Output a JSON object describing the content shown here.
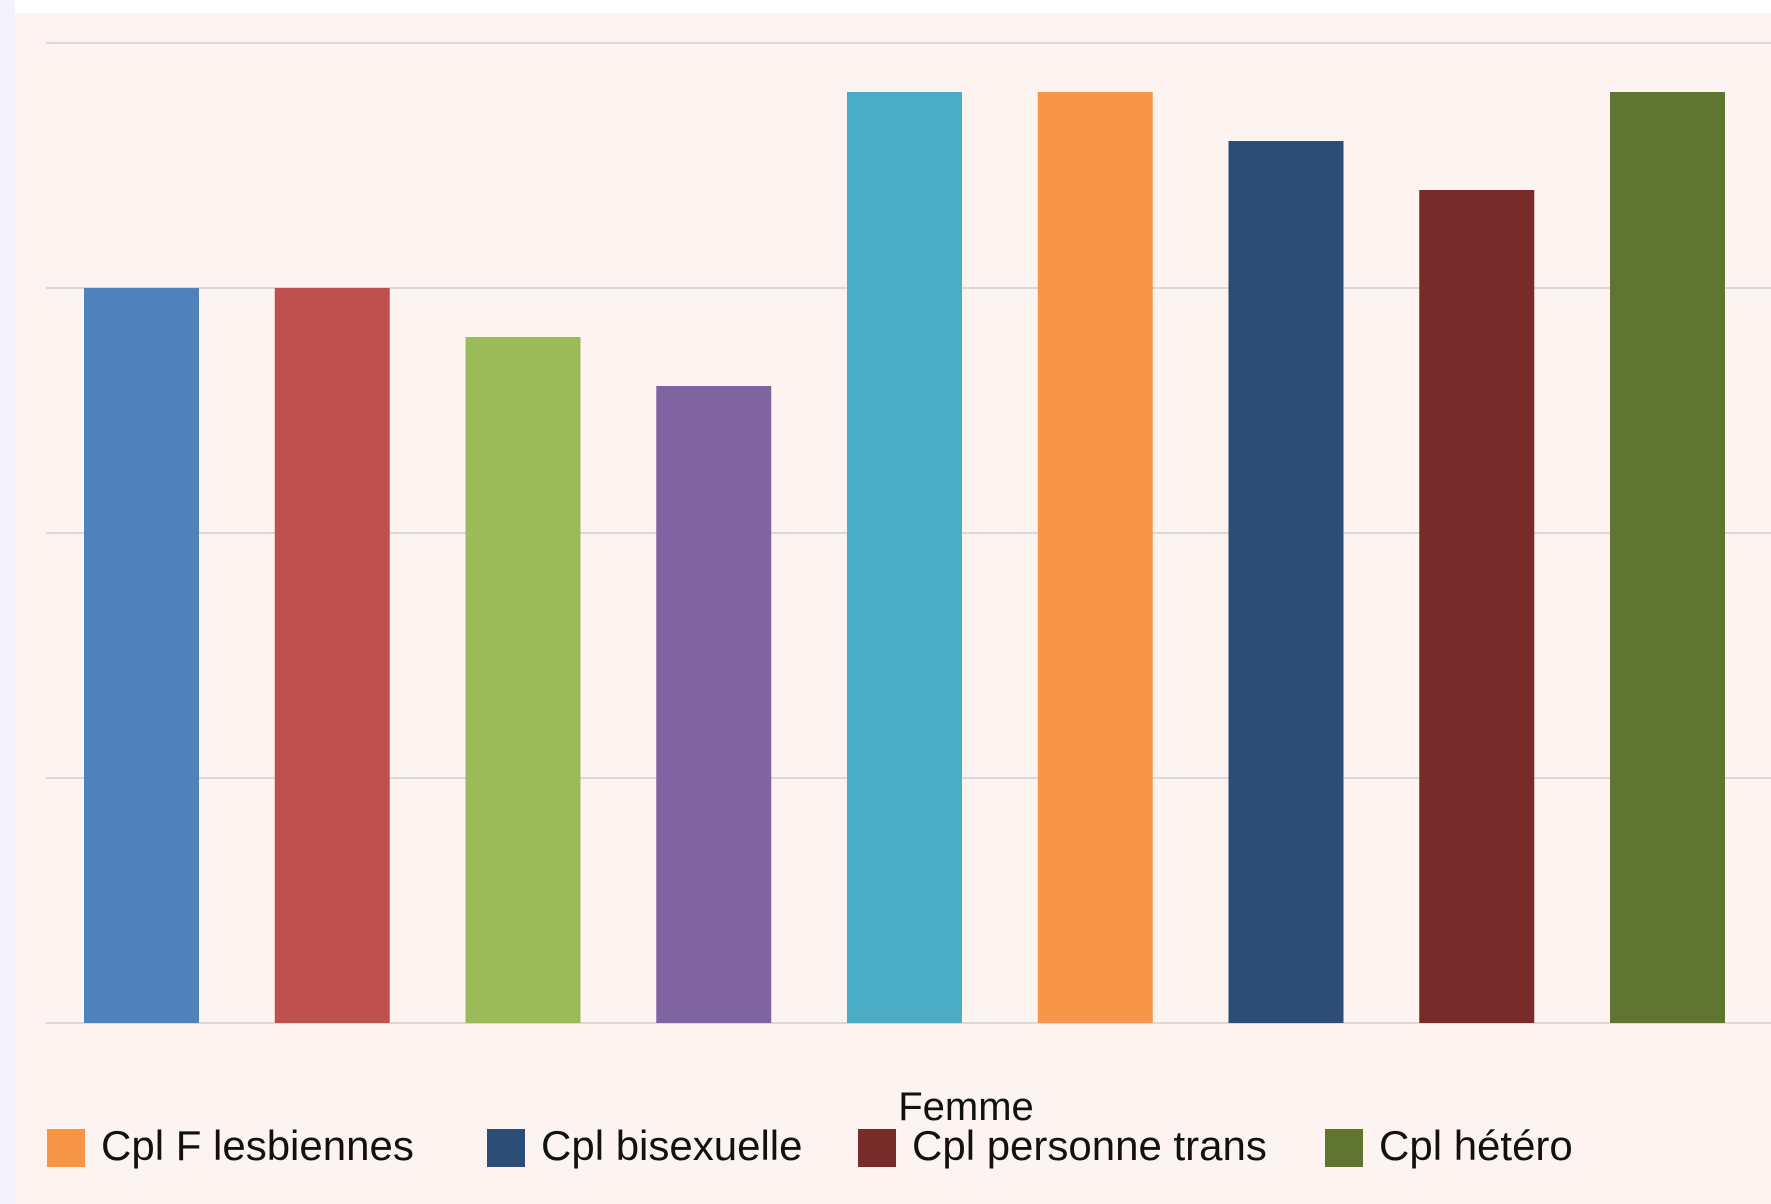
{
  "chart_data": {
    "type": "bar",
    "categories": [
      "Femme"
    ],
    "xlabel": "Femme",
    "ylabel": "",
    "ylim": [
      0,
      20
    ],
    "grid": true,
    "legend_position": "bottom",
    "series": [
      {
        "values": [
          15
        ],
        "color": "#4f81bd"
      },
      {
        "values": [
          15
        ],
        "color": "#c0504d"
      },
      {
        "values": [
          14
        ],
        "color": "#9bbb59"
      },
      {
        "values": [
          13
        ],
        "color": "#8064a2"
      },
      {
        "values": [
          19
        ],
        "color": "#4bacc6"
      },
      {
        "name": "Cpl F lesbiennes",
        "values": [
          19
        ],
        "color": "#f79646"
      },
      {
        "name": "Cpl bisexuelle",
        "values": [
          18
        ],
        "color": "#2c4d75"
      },
      {
        "name": "Cpl personne trans",
        "values": [
          17
        ],
        "color": "#772c2a"
      },
      {
        "name": "Cpl hétéro",
        "values": [
          19
        ],
        "color": "#5f7530"
      }
    ]
  },
  "colors": {
    "background": "#fdf3f1",
    "gridline": "#d9d9d9",
    "page_margin": "#f4f2fb"
  }
}
